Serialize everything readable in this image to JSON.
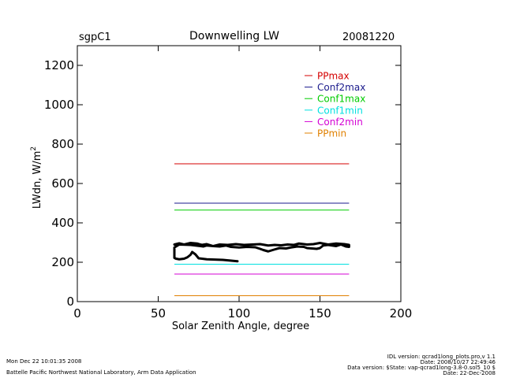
{
  "header": {
    "site": "sgpC1",
    "title": "Downwelling LW",
    "date": "20081220"
  },
  "footer": {
    "timestamp": "Mon Dec 22 10:01:35 2008",
    "lab": "Battelle Pacific Northwest National Laboratory, Arm Data Application",
    "idl_version": "IDL version: qcrad1long_plots.pro,v 1.1",
    "idl_date": "Date: 2008/10/27 22:49:46",
    "data_version": "Data version: $State: vap-qcrad1long-3.8-0.sol5_10 $",
    "data_date": "Date: 22-Dec-2008"
  },
  "chart_data": {
    "type": "line",
    "title": "Downwelling LW",
    "xlabel": "Solar Zenith Angle, degree",
    "ylabel": "LWdn, W/m",
    "ylabel_sup": "2",
    "xlim": [
      0,
      200
    ],
    "ylim": [
      0,
      1300
    ],
    "xticks": [
      0,
      50,
      100,
      150,
      200
    ],
    "yticks": [
      0,
      200,
      400,
      600,
      800,
      1000,
      1200
    ],
    "grid": false,
    "legend_position": "top-right",
    "series": [
      {
        "name": "PPmax",
        "color": "#d40000",
        "x": [
          60,
          168
        ],
        "y": [
          700,
          700
        ]
      },
      {
        "name": "Conf2max",
        "color": "#1a1a8c",
        "x": [
          60,
          168
        ],
        "y": [
          500,
          500
        ]
      },
      {
        "name": "Conf1max",
        "color": "#00cc00",
        "x": [
          60,
          168
        ],
        "y": [
          465,
          465
        ]
      },
      {
        "name": "Conf1min",
        "color": "#00e0e0",
        "x": [
          60,
          168
        ],
        "y": [
          190,
          190
        ]
      },
      {
        "name": "Conf2min",
        "color": "#d400d4",
        "x": [
          60,
          168
        ],
        "y": [
          140,
          140
        ]
      },
      {
        "name": "PPmin",
        "color": "#e08000",
        "x": [
          60,
          168
        ],
        "y": [
          30,
          30
        ]
      }
    ],
    "measurement": {
      "color": "#000000",
      "x": [
        99,
        90,
        80,
        75,
        73,
        71,
        70,
        68,
        66,
        63,
        61,
        60,
        60,
        63,
        70,
        78,
        80,
        84,
        88,
        92,
        95,
        100,
        105,
        110,
        113,
        115,
        118,
        122,
        125,
        129,
        132,
        136,
        140,
        142,
        148,
        150,
        152,
        155,
        160,
        163,
        166,
        168,
        168,
        165,
        160,
        155,
        150,
        146,
        142,
        137,
        134,
        130,
        126,
        122,
        118,
        113,
        108,
        103,
        98,
        93,
        88,
        84,
        80,
        77,
        74,
        70,
        66,
        63,
        60
      ],
      "y": [
        205,
        212,
        215,
        220,
        240,
        252,
        238,
        225,
        218,
        215,
        218,
        222,
        275,
        290,
        288,
        280,
        285,
        282,
        280,
        285,
        278,
        275,
        278,
        276,
        268,
        262,
        255,
        265,
        272,
        270,
        275,
        280,
        278,
        272,
        268,
        272,
        285,
        288,
        282,
        290,
        280,
        278,
        288,
        292,
        295,
        290,
        298,
        292,
        290,
        295,
        288,
        290,
        286,
        288,
        285,
        292,
        290,
        288,
        292,
        288,
        290,
        282,
        292,
        288,
        295,
        298,
        290,
        296,
        290
      ]
    }
  }
}
